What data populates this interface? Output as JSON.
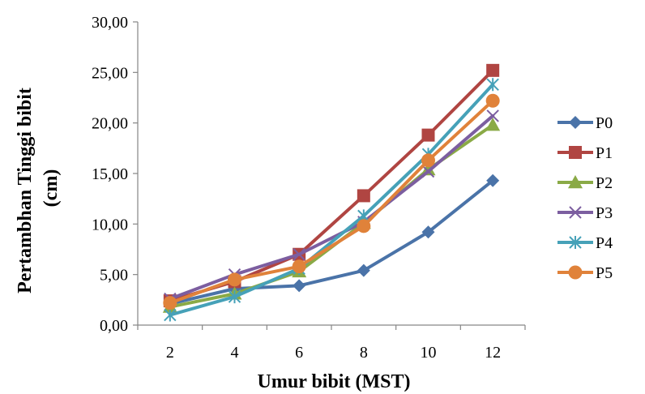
{
  "chart_data": {
    "type": "line",
    "x": [
      2,
      4,
      6,
      8,
      10,
      12
    ],
    "x_tick_labels": [
      "2",
      "4",
      "6",
      "8",
      "10",
      "12"
    ],
    "y_tick_labels": [
      "0,00",
      "5,00",
      "10,00",
      "15,00",
      "20,00",
      "25,00",
      "30,00"
    ],
    "ylim": [
      0,
      30
    ],
    "xlabel": "Umur bibit (MST)",
    "ylabel_lines": [
      "Pertambhan Tinggi  bibit",
      "(cm)"
    ],
    "grid": false,
    "legend_position": "right",
    "series": [
      {
        "name": "P0",
        "marker": "diamond",
        "color": "#4a73a8",
        "values": [
          2.1,
          3.6,
          3.9,
          5.4,
          9.2,
          14.3
        ]
      },
      {
        "name": "P1",
        "marker": "square",
        "color": "#b04542",
        "values": [
          2.4,
          4.3,
          7.0,
          12.8,
          18.8,
          25.2
        ]
      },
      {
        "name": "P2",
        "marker": "triangle",
        "color": "#8aaa46",
        "values": [
          1.8,
          3.1,
          5.3,
          10.1,
          15.4,
          19.8
        ]
      },
      {
        "name": "P3",
        "marker": "x",
        "color": "#7c5ea0",
        "values": [
          2.6,
          5.0,
          7.0,
          10.2,
          15.2,
          20.7
        ]
      },
      {
        "name": "P4",
        "marker": "asterisk",
        "color": "#46a1b8",
        "values": [
          1.0,
          2.8,
          5.6,
          10.8,
          16.9,
          23.8
        ]
      },
      {
        "name": "P5",
        "marker": "circle",
        "color": "#e0823a",
        "values": [
          2.2,
          4.5,
          5.8,
          9.8,
          16.3,
          22.2
        ]
      }
    ]
  }
}
